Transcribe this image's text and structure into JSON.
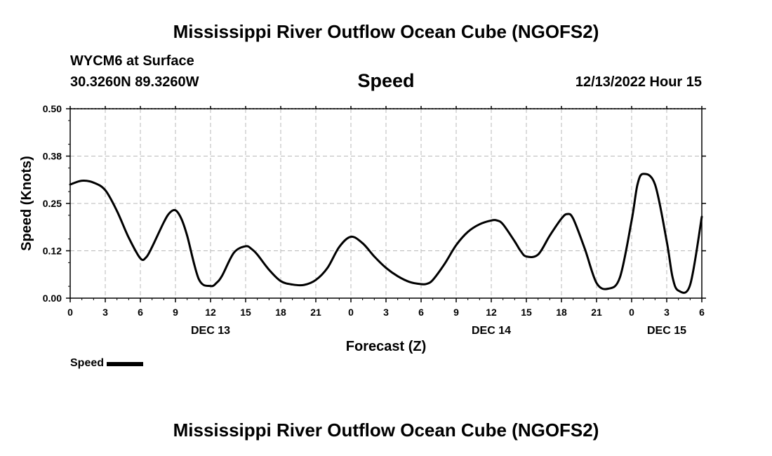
{
  "chart_data": {
    "type": "line",
    "title": "Mississippi River Outflow Ocean Cube (NGOFS2)",
    "subtitle": "Speed",
    "station": "WYCM6 at Surface",
    "location": "30.3260N  89.3260W",
    "datetime": "12/13/2022 Hour 15",
    "xlabel": "Forecast (Z)",
    "ylabel": "Speed (Knots)",
    "ylim": [
      0,
      0.5
    ],
    "yticks": [
      "0.00",
      "0.12",
      "0.25",
      "0.38",
      "0.50"
    ],
    "xlim": [
      0,
      54
    ],
    "xticks": [
      "0",
      "3",
      "6",
      "9",
      "12",
      "15",
      "18",
      "21",
      "0",
      "3",
      "6",
      "9",
      "12",
      "15",
      "18",
      "21",
      "0",
      "3",
      "6"
    ],
    "day_labels": [
      {
        "label": "DEC 13",
        "hour": 12
      },
      {
        "label": "DEC 14",
        "hour": 36
      },
      {
        "label": "DEC 15",
        "hour": 51
      }
    ],
    "grid": true,
    "legend_position": "bottom-left",
    "series": [
      {
        "name": "Speed",
        "x": [
          0,
          1,
          2,
          3,
          4,
          5,
          6,
          6.5,
          7,
          8,
          8.5,
          9,
          9.5,
          10,
          11,
          12,
          12.5,
          13,
          14,
          15,
          15.5,
          16,
          17,
          18,
          19,
          20,
          21,
          22,
          23,
          24,
          25,
          26,
          27,
          28,
          29,
          30,
          30.5,
          31,
          32,
          33,
          34,
          35,
          36,
          36.5,
          37,
          38,
          38.5,
          39,
          40,
          41,
          42,
          42.5,
          43,
          44,
          45,
          46,
          47,
          48,
          48.5,
          49,
          50,
          51,
          51.5,
          52,
          53,
          54
        ],
        "values": [
          0.3,
          0.31,
          0.305,
          0.285,
          0.23,
          0.16,
          0.105,
          0.108,
          0.135,
          0.2,
          0.225,
          0.232,
          0.21,
          0.165,
          0.05,
          0.032,
          0.04,
          0.06,
          0.12,
          0.137,
          0.13,
          0.115,
          0.075,
          0.045,
          0.036,
          0.035,
          0.048,
          0.08,
          0.135,
          0.162,
          0.145,
          0.11,
          0.08,
          0.058,
          0.043,
          0.037,
          0.038,
          0.048,
          0.09,
          0.14,
          0.175,
          0.195,
          0.205,
          0.205,
          0.195,
          0.15,
          0.125,
          0.11,
          0.115,
          0.165,
          0.21,
          0.222,
          0.21,
          0.13,
          0.04,
          0.025,
          0.055,
          0.205,
          0.3,
          0.328,
          0.3,
          0.15,
          0.055,
          0.02,
          0.035,
          0.215
        ]
      }
    ]
  }
}
